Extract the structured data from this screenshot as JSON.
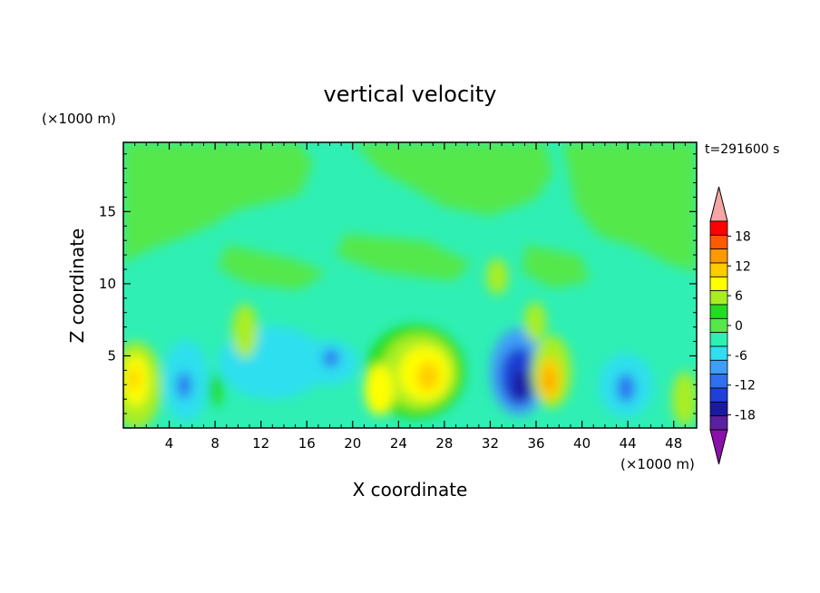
{
  "chart_data": {
    "type": "heatmap",
    "title": "vertical velocity",
    "xlabel": "X coordinate",
    "ylabel": "Z coordinate",
    "x_unit": "(×1000 m)",
    "y_unit": "(×1000 m)",
    "time_label": "t=291600 s",
    "xlim": [
      0,
      50
    ],
    "ylim": [
      0,
      19.8
    ],
    "x_ticks": [
      4,
      8,
      12,
      16,
      20,
      24,
      28,
      32,
      36,
      40,
      44,
      48
    ],
    "y_ticks": [
      5,
      10,
      15
    ],
    "colorbar": {
      "tick_labels": [
        18,
        12,
        6,
        0,
        -6,
        -12,
        -18
      ],
      "levels": [
        -21,
        -18,
        -15,
        -12,
        -9,
        -6,
        -3,
        0,
        3,
        6,
        9,
        12,
        15,
        18,
        21
      ],
      "colors": [
        "#8b10a8",
        "#5b1fa0",
        "#1a1aa0",
        "#1f3fd6",
        "#2f6ff0",
        "#3f9ff7",
        "#2fdfef",
        "#2fefb4",
        "#55e84b",
        "#22dd22",
        "#aaee22",
        "#ffff00",
        "#ffcc00",
        "#ff9900",
        "#ff5a00",
        "#ff0000",
        "#f4a6a6"
      ]
    },
    "grid": false,
    "legend": "colorbar-right"
  }
}
